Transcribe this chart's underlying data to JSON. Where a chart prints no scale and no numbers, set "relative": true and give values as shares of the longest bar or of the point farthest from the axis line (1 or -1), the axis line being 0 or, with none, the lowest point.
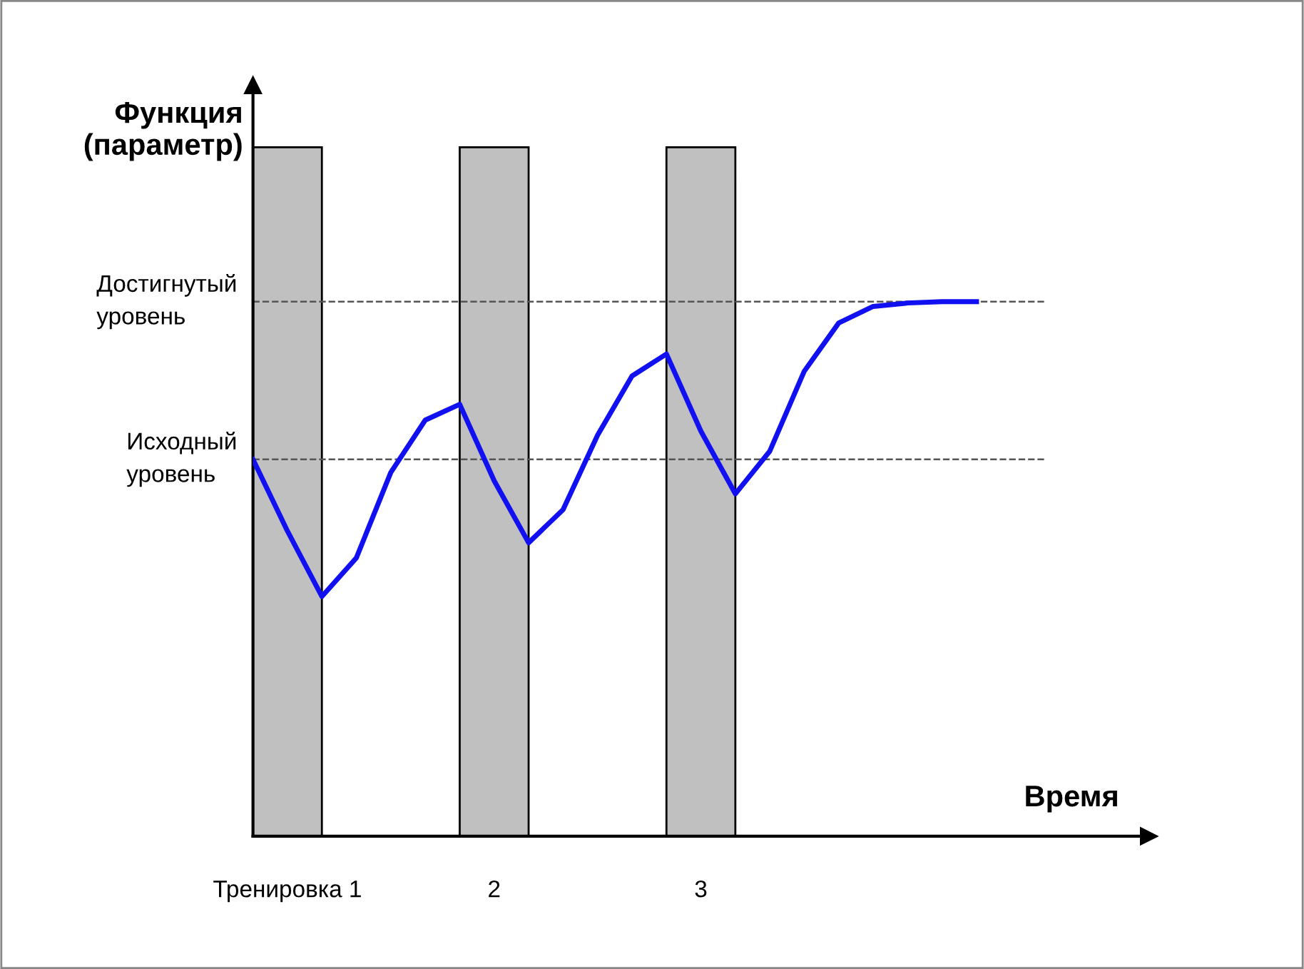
{
  "chart_data": {
    "type": "line",
    "relative": true,
    "xlabel": "Время",
    "ylabel": "Функция\n(параметр)",
    "categories": [
      null,
      "Тренировка 1",
      null,
      null,
      null,
      null,
      null,
      "2",
      null,
      null,
      null,
      null,
      null,
      "3",
      null,
      null,
      null,
      null,
      null,
      null,
      null,
      null
    ],
    "series": [
      {
        "type": "bar",
        "color": "#c0c0c0",
        "values": [
          null,
          1,
          null,
          null,
          null,
          null,
          null,
          1,
          null,
          null,
          null,
          null,
          null,
          1,
          null,
          null,
          null,
          null,
          null,
          null,
          null,
          null
        ]
      },
      {
        "color": "#1010f0",
        "values": [
          0.547,
          0.443,
          0.348,
          0.404,
          0.528,
          0.604,
          0.627,
          0.516,
          0.426,
          0.474,
          0.582,
          0.668,
          0.7,
          0.588,
          0.497,
          0.559,
          0.675,
          0.745,
          0.769,
          0.774,
          0.776,
          0.776
        ]
      }
    ],
    "ref_lines": [
      {
        "axis": "y",
        "value": 0.776,
        "label": "Достигнутый\nуровень",
        "color": "#555555",
        "line_style": "dashed"
      },
      {
        "axis": "y",
        "value": 0.547,
        "label": "Исходный\nуровень",
        "color": "#555555",
        "line_style": "dashed"
      }
    ],
    "legend": false,
    "marker": "none",
    "line_style": "solid",
    "tick_labels": "x"
  }
}
